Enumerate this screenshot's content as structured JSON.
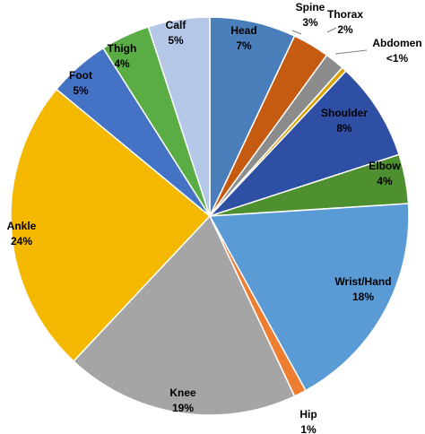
{
  "chart_data": {
    "type": "pie",
    "title": "",
    "slices": [
      {
        "name": "Head",
        "label": "7%",
        "value": 7,
        "color": "#4a7ebb"
      },
      {
        "name": "Spine",
        "label": "3%",
        "value": 3,
        "color": "#c55a11"
      },
      {
        "name": "Thorax",
        "label": "2%",
        "value": 1.6,
        "color": "#8c8c8c"
      },
      {
        "name": "Abdomen",
        "label": "<1%",
        "value": 0.4,
        "color": "#d9a000"
      },
      {
        "name": "Shoulder",
        "label": "8%",
        "value": 8,
        "color": "#2e4fa3"
      },
      {
        "name": "Elbow",
        "label": "4%",
        "value": 4,
        "color": "#4e8f2f"
      },
      {
        "name": "Wrist/Hand",
        "label": "18%",
        "value": 18,
        "color": "#5b9bd5"
      },
      {
        "name": "Hip",
        "label": "1%",
        "value": 1,
        "color": "#ed7d31"
      },
      {
        "name": "Knee",
        "label": "19%",
        "value": 19,
        "color": "#a5a5a5"
      },
      {
        "name": "Ankle",
        "label": "24%",
        "value": 24,
        "color": "#f5b800"
      },
      {
        "name": "Foot",
        "label": "5%",
        "value": 5,
        "color": "#4472c4"
      },
      {
        "name": "Thigh",
        "label": "4%",
        "value": 4,
        "color": "#5aac44"
      },
      {
        "name": "Calf",
        "label": "5%",
        "value": 5,
        "color": "#b4c7e7"
      }
    ]
  }
}
